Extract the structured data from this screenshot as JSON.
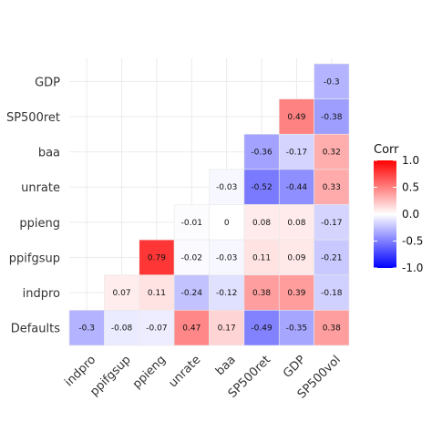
{
  "chart_data": {
    "type": "heatmap",
    "x_categories": [
      "indpro",
      "ppifgsup",
      "ppieng",
      "unrate",
      "baa",
      "SP500ret",
      "GDP",
      "SP500vol"
    ],
    "y_categories": [
      "Defaults",
      "indpro",
      "ppifgsup",
      "ppieng",
      "unrate",
      "baa",
      "SP500ret",
      "GDP"
    ],
    "cells": [
      {
        "y": "GDP",
        "x": "SP500vol",
        "value": -0.3,
        "label": "-0.3"
      },
      {
        "y": "SP500ret",
        "x": "GDP",
        "value": 0.49,
        "label": "0.49"
      },
      {
        "y": "SP500ret",
        "x": "SP500vol",
        "value": -0.38,
        "label": "-0.38"
      },
      {
        "y": "baa",
        "x": "SP500ret",
        "value": -0.36,
        "label": "-0.36"
      },
      {
        "y": "baa",
        "x": "GDP",
        "value": -0.17,
        "label": "-0.17"
      },
      {
        "y": "baa",
        "x": "SP500vol",
        "value": 0.32,
        "label": "0.32"
      },
      {
        "y": "unrate",
        "x": "baa",
        "value": -0.03,
        "label": "-0.03"
      },
      {
        "y": "unrate",
        "x": "SP500ret",
        "value": -0.52,
        "label": "-0.52"
      },
      {
        "y": "unrate",
        "x": "GDP",
        "value": -0.44,
        "label": "-0.44"
      },
      {
        "y": "unrate",
        "x": "SP500vol",
        "value": 0.33,
        "label": "0.33"
      },
      {
        "y": "ppieng",
        "x": "unrate",
        "value": -0.01,
        "label": "-0.01"
      },
      {
        "y": "ppieng",
        "x": "baa",
        "value": 0,
        "label": "0"
      },
      {
        "y": "ppieng",
        "x": "SP500ret",
        "value": 0.08,
        "label": "0.08"
      },
      {
        "y": "ppieng",
        "x": "GDP",
        "value": 0.08,
        "label": "0.08"
      },
      {
        "y": "ppieng",
        "x": "SP500vol",
        "value": -0.17,
        "label": "-0.17"
      },
      {
        "y": "ppifgsup",
        "x": "ppieng",
        "value": 0.79,
        "label": "0.79"
      },
      {
        "y": "ppifgsup",
        "x": "unrate",
        "value": -0.02,
        "label": "-0.02"
      },
      {
        "y": "ppifgsup",
        "x": "baa",
        "value": -0.03,
        "label": "-0.03"
      },
      {
        "y": "ppifgsup",
        "x": "SP500ret",
        "value": 0.11,
        "label": "0.11"
      },
      {
        "y": "ppifgsup",
        "x": "GDP",
        "value": 0.09,
        "label": "0.09"
      },
      {
        "y": "ppifgsup",
        "x": "SP500vol",
        "value": -0.21,
        "label": "-0.21"
      },
      {
        "y": "indpro",
        "x": "ppifgsup",
        "value": 0.07,
        "label": "0.07"
      },
      {
        "y": "indpro",
        "x": "ppieng",
        "value": 0.11,
        "label": "0.11"
      },
      {
        "y": "indpro",
        "x": "unrate",
        "value": -0.24,
        "label": "-0.24"
      },
      {
        "y": "indpro",
        "x": "baa",
        "value": -0.12,
        "label": "-0.12"
      },
      {
        "y": "indpro",
        "x": "SP500ret",
        "value": 0.38,
        "label": "0.38"
      },
      {
        "y": "indpro",
        "x": "GDP",
        "value": 0.39,
        "label": "0.39"
      },
      {
        "y": "indpro",
        "x": "SP500vol",
        "value": -0.18,
        "label": "-0.18"
      },
      {
        "y": "Defaults",
        "x": "indpro",
        "value": -0.3,
        "label": "-0.3"
      },
      {
        "y": "Defaults",
        "x": "ppifgsup",
        "value": -0.08,
        "label": "-0.08"
      },
      {
        "y": "Defaults",
        "x": "ppieng",
        "value": -0.07,
        "label": "-0.07"
      },
      {
        "y": "Defaults",
        "x": "unrate",
        "value": 0.47,
        "label": "0.47"
      },
      {
        "y": "Defaults",
        "x": "baa",
        "value": 0.17,
        "label": "0.17"
      },
      {
        "y": "Defaults",
        "x": "SP500ret",
        "value": -0.49,
        "label": "-0.49"
      },
      {
        "y": "Defaults",
        "x": "GDP",
        "value": -0.35,
        "label": "-0.35"
      },
      {
        "y": "Defaults",
        "x": "SP500vol",
        "value": 0.38,
        "label": "0.38"
      }
    ],
    "legend": {
      "title": "Corr",
      "range": [
        -1.0,
        1.0
      ],
      "ticks": [
        1.0,
        0.5,
        0.0,
        -0.5,
        -1.0
      ],
      "tick_labels": [
        "1.0",
        "0.5",
        "0.0",
        "-0.5",
        "-1.0"
      ],
      "colors": {
        "low": "#0000ff",
        "mid": "#ffffff",
        "high": "#ff0000"
      },
      "placement": "right"
    },
    "grid": true
  }
}
